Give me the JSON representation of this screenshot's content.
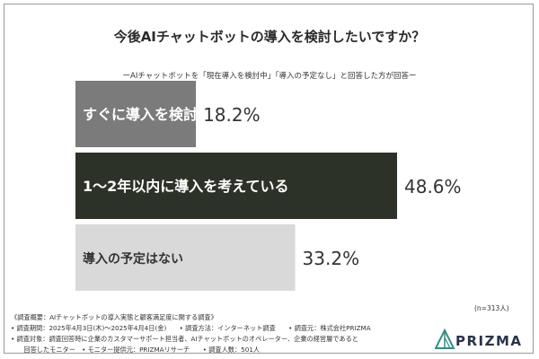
{
  "chart_data": {
    "type": "bar",
    "orientation": "horizontal",
    "title": "今後AIチャットボットの導入を検討したいですか？",
    "subtitle": "ーAIチャットボットを「現在導入を検討中」「導入の予定なし」と回答した方が回答ー",
    "categories": [
      "すぐに導入を検討したい",
      "1〜2年以内に導入を考えている",
      "導入の予定はない"
    ],
    "values": [
      18.2,
      48.6,
      33.2
    ],
    "value_labels": [
      "18.2%",
      "48.6%",
      "33.2%"
    ],
    "colors": [
      "#7b7b7b",
      "#2d3228",
      "#d9d9d9"
    ],
    "label_colors": [
      "#ffffff",
      "#ffffff",
      "#333333"
    ],
    "xlim": [
      0,
      48.6
    ],
    "grid": false
  },
  "sample_size": "(n=313人)",
  "notes": [
    "《調査概要：AIチャットボットの導入実態と顧客満足度に関する調査》",
    "• 調査期間：2025年4月3日(木)〜2025年4月4日(金)　　• 調査方法：インターネット調査　　• 調査元：株式会社PRIZMA",
    "• 調査対象：調査回答時に企業のカスタマーサポート担当者、AIチャットボットのオペレーター、企業の経営層であると",
    "　　回答したモニター　• モニター提供元：PRIZMAリサーチ　　• 調査人数：501人"
  ],
  "logo": {
    "text": "PRIZMA",
    "colors": [
      "#2f8f84",
      "#27344c"
    ]
  }
}
